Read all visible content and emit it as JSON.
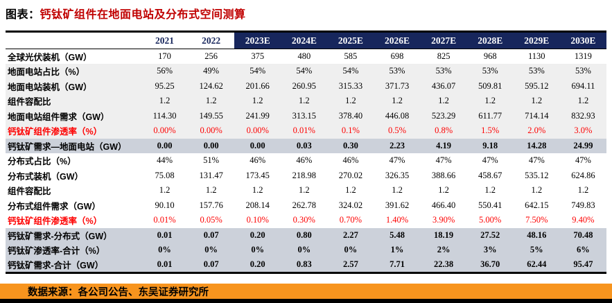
{
  "title": {
    "prefix": "图表：",
    "text": "钙钛矿组件在地面电站及分布式空间测算"
  },
  "table": {
    "columns": [
      "2021",
      "2022",
      "2023E",
      "2024E",
      "2025E",
      "2026E",
      "2027E",
      "2028E",
      "2029E",
      "2030E"
    ],
    "forecast_start_index": 2,
    "rows": [
      {
        "label": "全球光伏装机（GW）",
        "band": "white",
        "red": false,
        "bold": false,
        "values": [
          "170",
          "256",
          "375",
          "480",
          "585",
          "698",
          "825",
          "968",
          "1130",
          "1319"
        ]
      },
      {
        "label": "地面电站占比（%）",
        "band": "light",
        "red": false,
        "bold": false,
        "values": [
          "56%",
          "49%",
          "54%",
          "54%",
          "54%",
          "53%",
          "53%",
          "53%",
          "53%",
          "53%"
        ]
      },
      {
        "label": "地面电站装机（GW）",
        "band": "light",
        "red": false,
        "bold": false,
        "values": [
          "95.25",
          "124.62",
          "201.66",
          "260.95",
          "315.33",
          "371.73",
          "436.07",
          "509.81",
          "595.12",
          "694.11"
        ]
      },
      {
        "label": "组件容配比",
        "band": "light",
        "red": false,
        "bold": false,
        "values": [
          "1.2",
          "1.2",
          "1.2",
          "1.2",
          "1.2",
          "1.2",
          "1.2",
          "1.2",
          "1.2",
          "1.2"
        ]
      },
      {
        "label": "地面电站组件需求（GW）",
        "band": "light",
        "red": false,
        "bold": false,
        "values": [
          "114.30",
          "149.55",
          "241.99",
          "313.15",
          "378.40",
          "446.08",
          "523.29",
          "611.77",
          "714.14",
          "832.93"
        ]
      },
      {
        "label": "钙钛矿组件渗透率（%）",
        "band": "light",
        "red": true,
        "bold": false,
        "values": [
          "0.00%",
          "0.00%",
          "0.00%",
          "0.01%",
          "0.1%",
          "0.5%",
          "0.8%",
          "1.5%",
          "2.0%",
          "3.0%"
        ]
      },
      {
        "label": "钙钛矿需求—地面电站（GW）",
        "band": "highlight",
        "red": false,
        "bold": true,
        "values": [
          "0.00",
          "0.00",
          "0.00",
          "0.03",
          "0.30",
          "2.23",
          "4.19",
          "9.18",
          "14.28",
          "24.99"
        ]
      },
      {
        "label": "分布式占比（%）",
        "band": "white",
        "red": false,
        "bold": false,
        "values": [
          "44%",
          "51%",
          "46%",
          "46%",
          "46%",
          "47%",
          "47%",
          "47%",
          "47%",
          "47%"
        ]
      },
      {
        "label": "分布式装机（GW）",
        "band": "white",
        "red": false,
        "bold": false,
        "values": [
          "75.08",
          "131.47",
          "173.45",
          "218.98",
          "270.02",
          "326.35",
          "388.66",
          "458.67",
          "535.12",
          "624.86"
        ]
      },
      {
        "label": "组件容配比",
        "band": "white",
        "red": false,
        "bold": false,
        "values": [
          "1.2",
          "1.2",
          "1.2",
          "1.2",
          "1.2",
          "1.2",
          "1.2",
          "1.2",
          "1.2",
          "1.2"
        ]
      },
      {
        "label": "分布式组件需求（GW）",
        "band": "white",
        "red": false,
        "bold": false,
        "values": [
          "90.10",
          "157.76",
          "208.14",
          "262.78",
          "324.02",
          "391.62",
          "466.40",
          "550.41",
          "642.15",
          "749.83"
        ]
      },
      {
        "label": "钙钛矿组件渗透率（%）",
        "band": "white",
        "red": true,
        "bold": false,
        "values": [
          "0.01%",
          "0.05%",
          "0.10%",
          "0.30%",
          "0.70%",
          "1.40%",
          "3.90%",
          "5.00%",
          "7.50%",
          "9.40%"
        ]
      },
      {
        "label": "钙钛矿需求-分布式（GW）",
        "band": "highlight",
        "red": false,
        "bold": true,
        "values": [
          "0.01",
          "0.07",
          "0.20",
          "0.80",
          "2.27",
          "5.48",
          "18.19",
          "27.52",
          "48.16",
          "70.48"
        ]
      },
      {
        "label": "钙钛矿渗透率-合计（%）",
        "band": "highlight",
        "red": false,
        "bold": true,
        "values": [
          "0%",
          "0%",
          "0%",
          "0%",
          "0%",
          "1%",
          "2%",
          "3%",
          "5%",
          "6%"
        ]
      },
      {
        "label": "钙钛矿需求-合计（GW）",
        "band": "highlight",
        "red": false,
        "bold": true,
        "values": [
          "0.01",
          "0.07",
          "0.20",
          "0.83",
          "2.57",
          "7.71",
          "22.38",
          "36.70",
          "62.44",
          "95.47"
        ]
      }
    ]
  },
  "footer": {
    "source": "数据来源：各公司公告、东吴证券研究所"
  },
  "colors": {
    "header_navy": "#17265c",
    "title_red": "#c00000",
    "value_red": "#fe0000",
    "band_light": "#efefef",
    "band_highlight": "#ccd1da",
    "source_orange": "#f7941e",
    "bottom_strip": "#000000"
  }
}
